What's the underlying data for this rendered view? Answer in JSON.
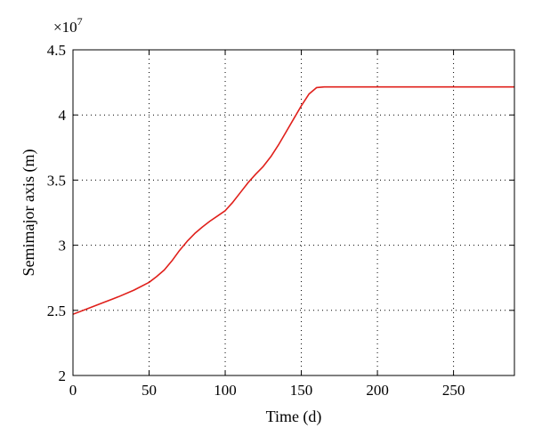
{
  "chart_data": {
    "type": "line",
    "title": "",
    "xlabel": "Time (d)",
    "ylabel": "Semimajor axis (m)",
    "y_multiplier": {
      "base": "×10",
      "exponent": "7"
    },
    "xlim": [
      0,
      290
    ],
    "ylim": [
      2,
      4.5
    ],
    "x_ticks": [
      0,
      50,
      100,
      150,
      200,
      250
    ],
    "y_ticks": [
      2,
      2.5,
      3,
      3.5,
      4,
      4.5
    ],
    "x_tick_labels": [
      "0",
      "50",
      "100",
      "150",
      "200",
      "250"
    ],
    "y_tick_labels": [
      "2",
      "2.5",
      "3",
      "3.5",
      "4",
      "4.5"
    ],
    "grid": true,
    "grid_style": "dotted",
    "series": [
      {
        "color": "#e0201b",
        "x": [
          0,
          10,
          20,
          30,
          40,
          50,
          55,
          60,
          65,
          70,
          75,
          80,
          85,
          90,
          95,
          100,
          105,
          110,
          115,
          120,
          125,
          130,
          135,
          140,
          145,
          150,
          155,
          160,
          165,
          200,
          250,
          290
        ],
        "y": [
          2.47,
          2.515,
          2.56,
          2.605,
          2.655,
          2.715,
          2.76,
          2.81,
          2.88,
          2.96,
          3.03,
          3.09,
          3.14,
          3.185,
          3.225,
          3.265,
          3.33,
          3.405,
          3.48,
          3.545,
          3.605,
          3.68,
          3.77,
          3.87,
          3.97,
          4.07,
          4.16,
          4.21,
          4.215,
          4.215,
          4.215,
          4.215
        ]
      }
    ]
  }
}
